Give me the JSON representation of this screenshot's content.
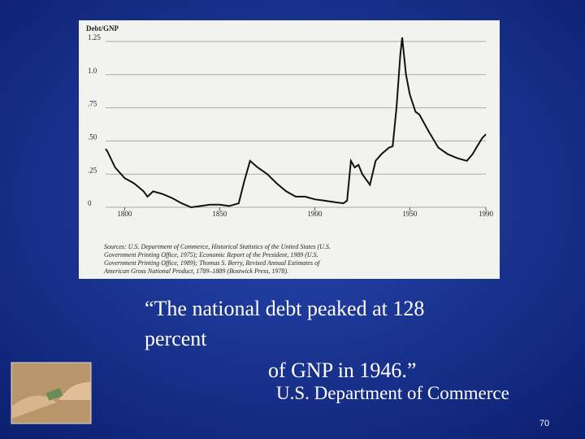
{
  "chart_data": {
    "type": "line",
    "y_label": "Debt/GNP",
    "x": [
      1790,
      1791,
      1795,
      1800,
      1805,
      1810,
      1812,
      1815,
      1820,
      1825,
      1830,
      1835,
      1840,
      1845,
      1850,
      1855,
      1860,
      1863,
      1866,
      1870,
      1875,
      1880,
      1885,
      1890,
      1895,
      1900,
      1905,
      1910,
      1915,
      1917,
      1919,
      1921,
      1923,
      1925,
      1929,
      1932,
      1935,
      1939,
      1941,
      1943,
      1945,
      1946,
      1948,
      1950,
      1953,
      1955,
      1960,
      1965,
      1970,
      1975,
      1980,
      1983,
      1985,
      1988,
      1990
    ],
    "values": [
      0.44,
      0.42,
      0.3,
      0.22,
      0.18,
      0.12,
      0.08,
      0.12,
      0.1,
      0.07,
      0.03,
      0.0,
      0.01,
      0.02,
      0.02,
      0.01,
      0.03,
      0.2,
      0.35,
      0.3,
      0.25,
      0.18,
      0.12,
      0.08,
      0.08,
      0.06,
      0.05,
      0.04,
      0.03,
      0.05,
      0.35,
      0.3,
      0.32,
      0.25,
      0.17,
      0.35,
      0.4,
      0.45,
      0.46,
      0.75,
      1.15,
      1.28,
      1.0,
      0.85,
      0.72,
      0.7,
      0.57,
      0.45,
      0.4,
      0.37,
      0.35,
      0.4,
      0.45,
      0.52,
      0.55
    ],
    "color": "#111111",
    "xlim": [
      1790,
      1990
    ],
    "xticks": [
      1800,
      1850,
      1900,
      1950,
      1990
    ],
    "ylim": [
      0,
      1.25
    ],
    "yticks": [
      0,
      {
        "value": 0.25,
        "label": ".25"
      },
      {
        "value": 0.5,
        "label": ".50"
      },
      {
        "value": 0.75,
        "label": ".75"
      },
      {
        "value": 1,
        "label": "1.0"
      },
      1.25
    ],
    "grid": true,
    "sources": [
      "Sources: U.S. Department of Commerce, Historical Statistics of the United States (U.S.",
      "Government Printing Office, 1975); Economic Report of the President, 1989 (U.S.",
      "Government Printing Office, 1989); Thomas S. Berry, Revised Annual Estimates of",
      "American Gross National Product, 1789–1889 (Bostwick Press, 1978)."
    ]
  },
  "slide": {
    "quote": [
      "“The national debt peaked at 128",
      "percent",
      "of GNP in 1946.”"
    ],
    "attribution": "U.S. Department of Commerce",
    "page_number": "70"
  }
}
